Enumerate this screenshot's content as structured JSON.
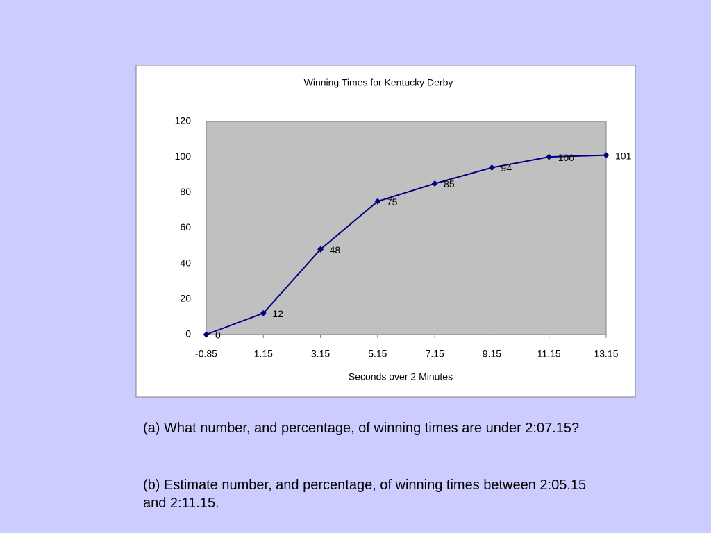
{
  "chart_data": {
    "type": "line",
    "title": "Winning Times for Kentucky Derby",
    "x_label": "Seconds over 2 Minutes",
    "x": [
      -0.85,
      1.15,
      3.15,
      5.15,
      7.15,
      9.15,
      11.15,
      13.15
    ],
    "values": [
      0,
      12,
      48,
      75,
      85,
      94,
      100,
      101
    ],
    "color": "#000080",
    "xlim": [
      -0.85,
      13.15
    ],
    "xticks": [
      -0.85,
      1.15,
      3.15,
      5.15,
      7.15,
      9.15,
      11.15,
      13.15
    ],
    "ylim": [
      0,
      120
    ],
    "yticks": [
      0,
      20,
      40,
      60,
      80,
      100,
      120
    ],
    "grid": false
  },
  "questions": [
    "(a)  What number, and  percentage, of winning times are under 2:07.15?",
    "(b) Estimate number, and percentage, of winning times between 2:05.15 and 2:11.15."
  ]
}
